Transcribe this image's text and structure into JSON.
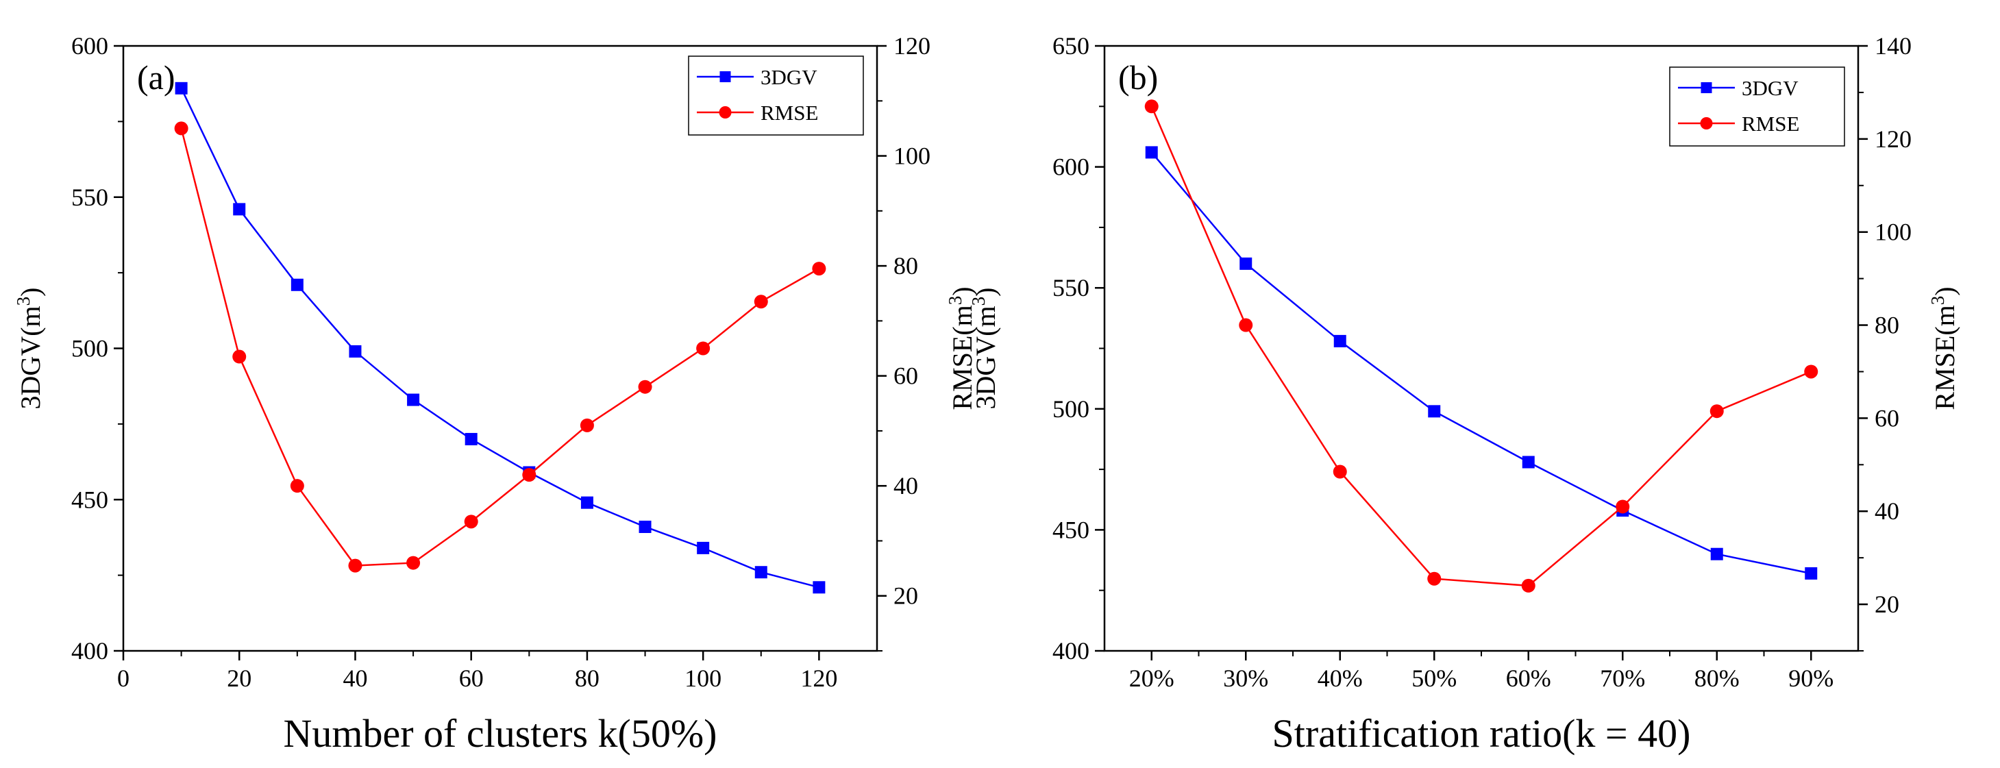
{
  "chart_data": [
    {
      "type": "line",
      "panel_label": "(a)",
      "xlabel": "Number of clusters k(50%)",
      "ylabel_left": "3DGV(m",
      "ylabel_right": "RMSE(m",
      "ylabel_superscript": "3",
      "ylabel_close": ")",
      "x": [
        10,
        20,
        30,
        40,
        50,
        60,
        70,
        80,
        90,
        100,
        110,
        120
      ],
      "xlim": [
        0,
        130
      ],
      "xticks": [
        0,
        20,
        40,
        60,
        80,
        100,
        120
      ],
      "xtick_labels": [
        "0",
        "20",
        "40",
        "60",
        "80",
        "100",
        "120"
      ],
      "ylim_left": [
        400,
        600
      ],
      "yticks_left": [
        400,
        450,
        500,
        550,
        600
      ],
      "ytick_labels_left": [
        "400",
        "450",
        "500",
        "550",
        "600"
      ],
      "ylim_right": [
        10,
        120
      ],
      "yticks_right": [
        20,
        40,
        60,
        80,
        100,
        120
      ],
      "ytick_labels_right": [
        "20",
        "40",
        "60",
        "80",
        "100",
        "120"
      ],
      "legend_position": "top-right",
      "series": [
        {
          "name": "3DGV",
          "axis": "left",
          "color": "#0000ff",
          "marker": "square",
          "values": [
            586,
            546,
            521,
            499,
            483,
            470,
            459,
            449,
            441,
            434,
            426,
            421
          ]
        },
        {
          "name": "RMSE",
          "axis": "right",
          "color": "#ff0000",
          "marker": "circle",
          "values": [
            105,
            63.5,
            40,
            25.5,
            26,
            33.5,
            42,
            51,
            58,
            65,
            73.5,
            79.5
          ]
        }
      ]
    },
    {
      "type": "line",
      "panel_label": "(b)",
      "xlabel": "Stratification ratio(k = 40)",
      "ylabel_left": "3DGV(m",
      "ylabel_right": "RMSE(m",
      "ylabel_superscript": "3",
      "ylabel_close": ")",
      "categories": [
        "20%",
        "30%",
        "40%",
        "50%",
        "60%",
        "70%",
        "80%",
        "90%"
      ],
      "ylim_left": [
        400,
        650
      ],
      "yticks_left": [
        400,
        450,
        500,
        550,
        600,
        650
      ],
      "ytick_labels_left": [
        "400",
        "450",
        "500",
        "550",
        "600",
        "650"
      ],
      "ylim_right": [
        10,
        140
      ],
      "yticks_right": [
        20,
        40,
        60,
        80,
        100,
        120,
        140
      ],
      "ytick_labels_right": [
        "20",
        "40",
        "60",
        "80",
        "100",
        "120",
        "140"
      ],
      "legend_position": "top-right",
      "series": [
        {
          "name": "3DGV",
          "axis": "left",
          "color": "#0000ff",
          "marker": "square",
          "values": [
            606,
            560,
            528,
            499,
            478,
            458,
            440,
            432
          ]
        },
        {
          "name": "RMSE",
          "axis": "right",
          "color": "#ff0000",
          "marker": "circle",
          "values": [
            127,
            80,
            48.5,
            25.5,
            24,
            41,
            61.5,
            70
          ]
        }
      ]
    }
  ]
}
